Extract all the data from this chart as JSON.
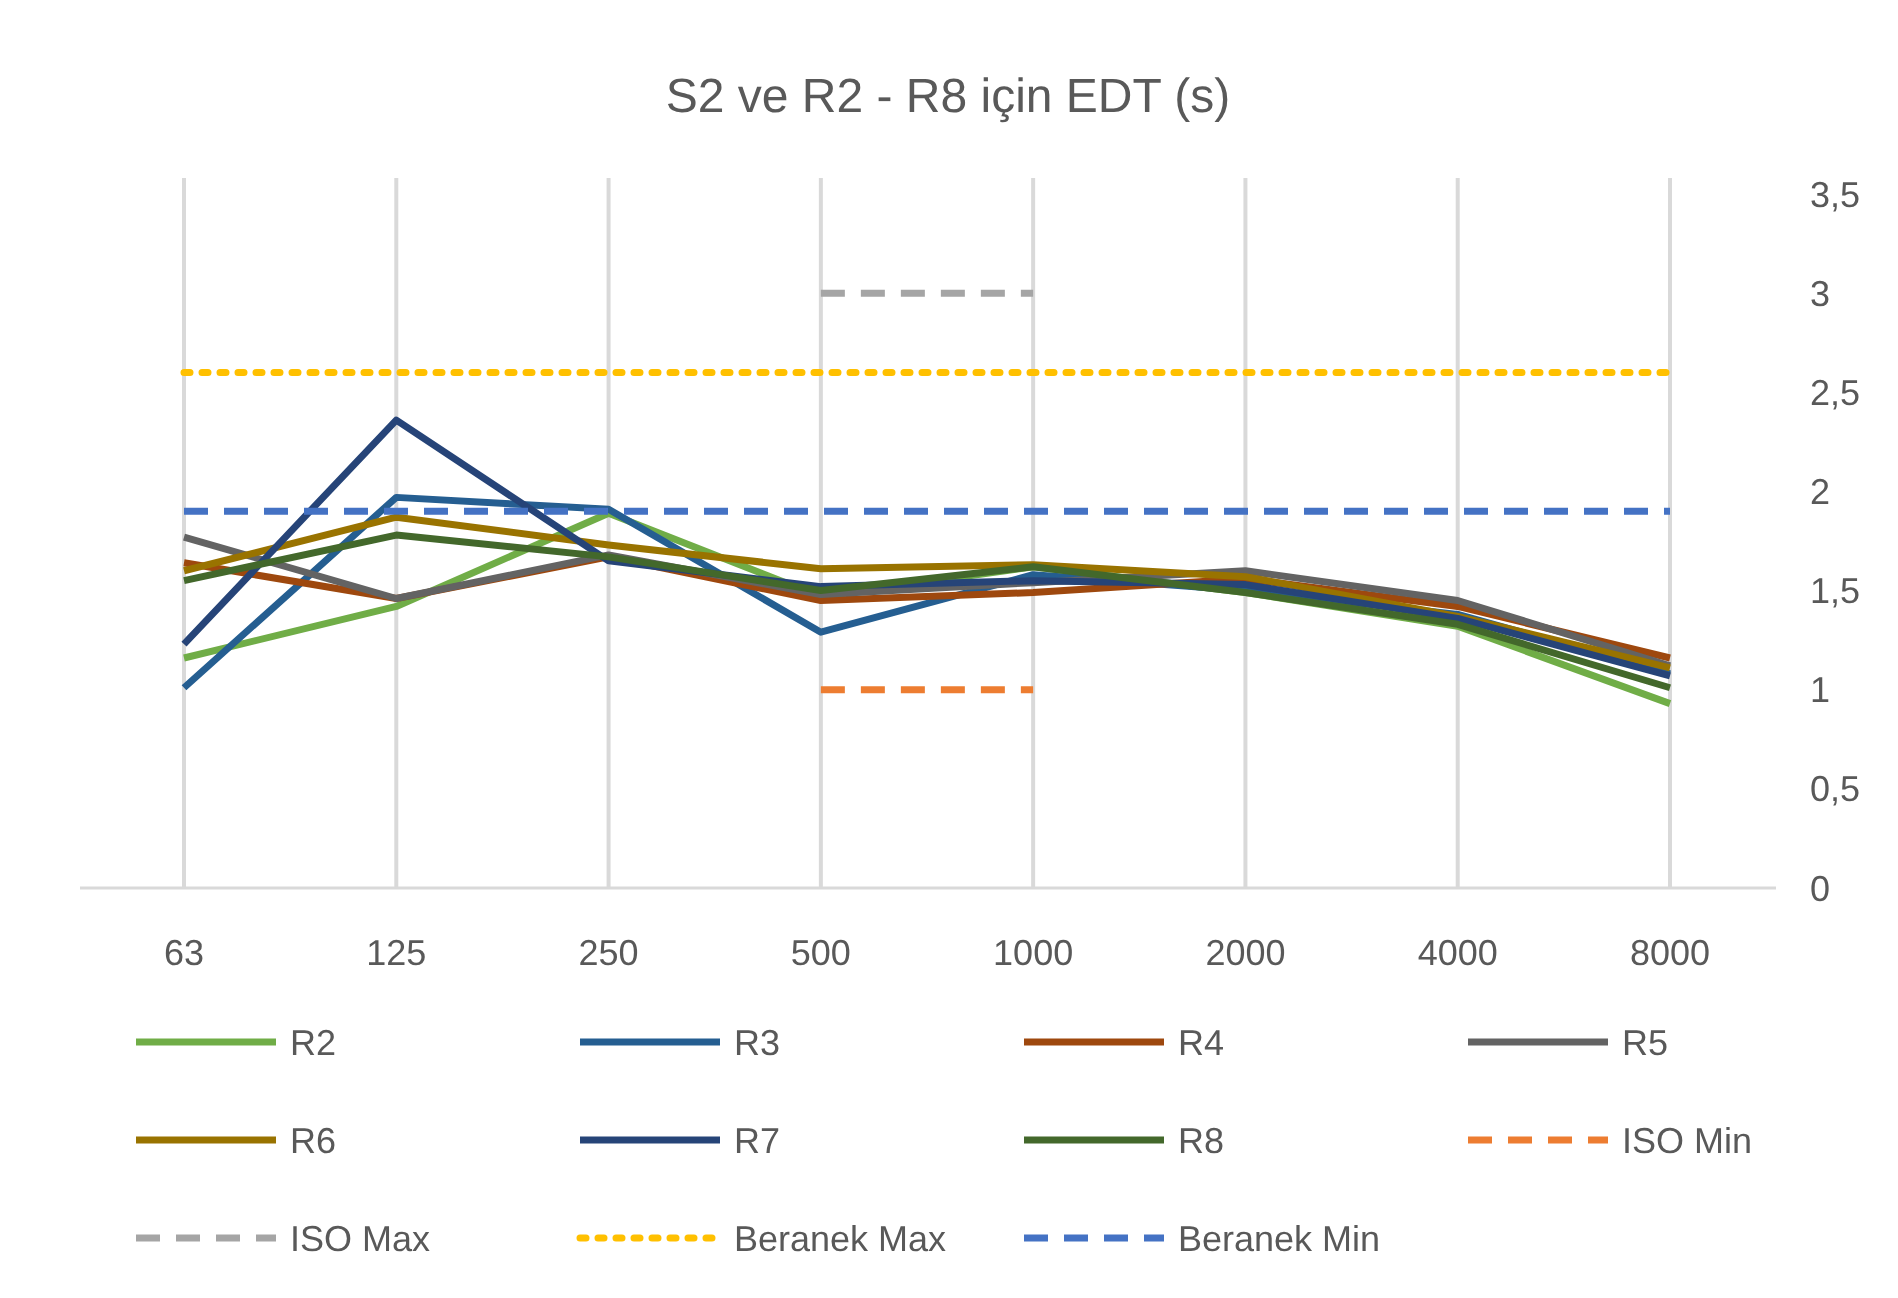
{
  "chart_data": {
    "type": "line",
    "title": "S2 ve R2 - R8 için EDT (s)",
    "categories": [
      "63",
      "125",
      "250",
      "500",
      "1000",
      "2000",
      "4000",
      "8000"
    ],
    "series": [
      {
        "name": "R2",
        "color": "#70ad47",
        "values": [
          1.16,
          1.42,
          1.89,
          1.47,
          1.62,
          1.49,
          1.32,
          0.93
        ]
      },
      {
        "name": "R3",
        "color": "#255e91",
        "values": [
          1.01,
          1.97,
          1.91,
          1.29,
          1.58,
          1.5,
          1.38,
          1.08
        ]
      },
      {
        "name": "R4",
        "color": "#9e480e",
        "values": [
          1.64,
          1.46,
          1.67,
          1.45,
          1.49,
          1.56,
          1.42,
          1.16
        ]
      },
      {
        "name": "R5",
        "color": "#636363",
        "values": [
          1.77,
          1.46,
          1.68,
          1.48,
          1.54,
          1.6,
          1.45,
          1.12
        ]
      },
      {
        "name": "R6",
        "color": "#997300",
        "values": [
          1.6,
          1.87,
          1.73,
          1.61,
          1.63,
          1.57,
          1.37,
          1.11
        ]
      },
      {
        "name": "R7",
        "color": "#264478",
        "values": [
          1.23,
          2.36,
          1.65,
          1.52,
          1.55,
          1.53,
          1.36,
          1.07
        ]
      },
      {
        "name": "R8",
        "color": "#43682b",
        "values": [
          1.55,
          1.78,
          1.67,
          1.5,
          1.62,
          1.49,
          1.33,
          1.01
        ]
      },
      {
        "name": "ISO Min",
        "color": "#ed7d31",
        "line_style": "dashed",
        "values": [
          null,
          null,
          null,
          1,
          1,
          null,
          null,
          null
        ]
      },
      {
        "name": "ISO Max",
        "color": "#a5a5a5",
        "line_style": "dashed",
        "values": [
          null,
          null,
          null,
          3,
          3,
          null,
          null,
          null
        ]
      },
      {
        "name": "Beranek Max",
        "color": "#ffc000",
        "line_style": "dotted",
        "values": [
          2.6,
          2.6,
          2.6,
          2.6,
          2.6,
          2.6,
          2.6,
          2.6
        ]
      },
      {
        "name": "Beranek Min",
        "color": "#4472c4",
        "line_style": "dashed",
        "values": [
          1.9,
          1.9,
          1.9,
          1.9,
          1.9,
          1.9,
          1.9,
          1.9
        ]
      }
    ],
    "ylim": [
      0,
      3.5
    ],
    "yticks": [
      0,
      {
        "value": 0.5,
        "label": "0,5"
      },
      1,
      {
        "value": 1.5,
        "label": "1,5"
      },
      2,
      {
        "value": 2.5,
        "label": "2,5"
      },
      3,
      {
        "value": 3.5,
        "label": "3,5"
      }
    ],
    "grid": "x",
    "legend": "bottom",
    "line_style": "solid",
    "marker": "none"
  }
}
